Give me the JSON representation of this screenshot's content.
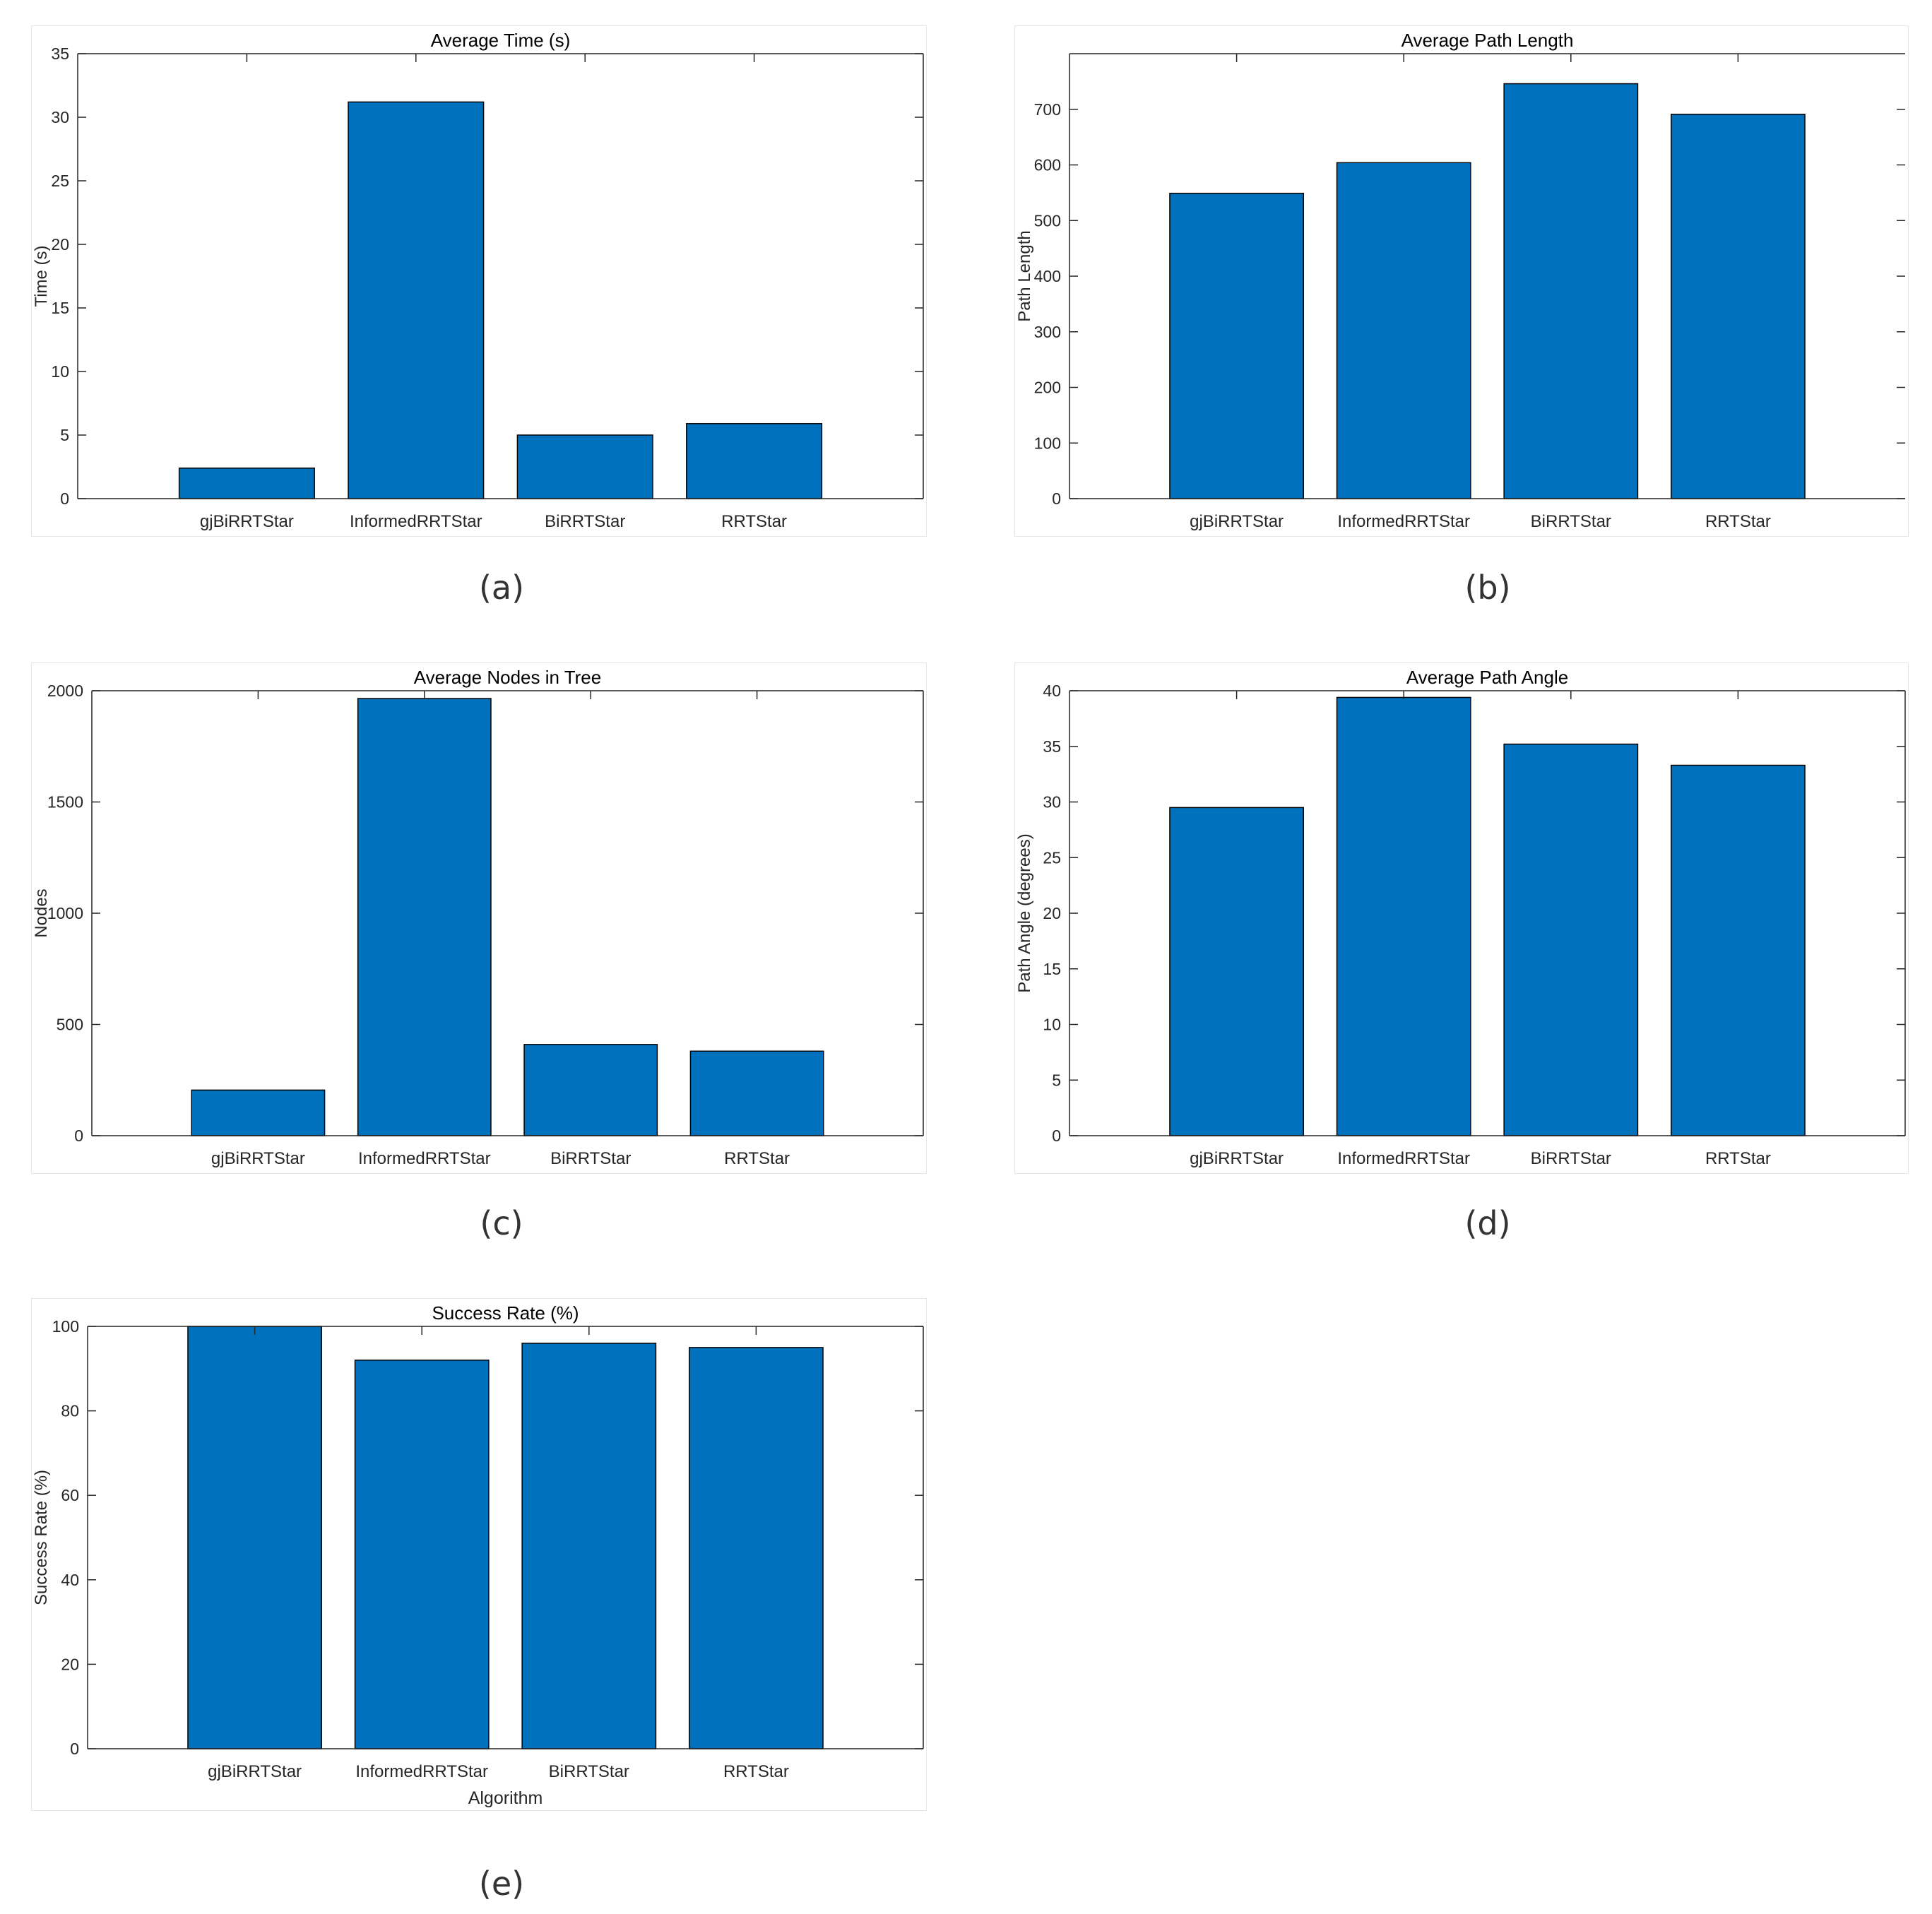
{
  "chart_data": [
    {
      "type": "bar",
      "title": "Average Time (s)",
      "xlabel": "",
      "ylabel": "Time (s)",
      "categories": [
        "gjBiRRTStar",
        "InformedRRTStar",
        "BiRRTStar",
        "RRTStar"
      ],
      "values": [
        2.4,
        31.2,
        5.0,
        5.9
      ],
      "ylim": [
        0,
        35
      ],
      "yticks": [
        "0",
        "5",
        "10",
        "15",
        "20",
        "25",
        "30",
        "35"
      ],
      "bar_color": "#0072BD",
      "caption": "(a)"
    },
    {
      "type": "bar",
      "title": "Average Path Length",
      "xlabel": "",
      "ylabel": "Path Length",
      "categories": [
        "gjBiRRTStar",
        "InformedRRTStar",
        "BiRRTStar",
        "RRTStar"
      ],
      "values": [
        549,
        604,
        746,
        691
      ],
      "ylim": [
        0,
        800
      ],
      "yticks": [
        "0",
        "100",
        "200",
        "300",
        "400",
        "500",
        "600",
        "700"
      ],
      "bar_color": "#0072BD",
      "caption": "(b)"
    },
    {
      "type": "bar",
      "title": "Average Nodes in Tree",
      "xlabel": "",
      "ylabel": "Nodes",
      "categories": [
        "gjBiRRTStar",
        "InformedRRTStar",
        "BiRRTStar",
        "RRTStar"
      ],
      "values": [
        205,
        1965,
        410,
        380
      ],
      "ylim": [
        0,
        2000
      ],
      "yticks": [
        "0",
        "500",
        "1000",
        "1500",
        "2000"
      ],
      "bar_color": "#0072BD",
      "caption": "(c)"
    },
    {
      "type": "bar",
      "title": "Average Path Angle",
      "xlabel": "",
      "ylabel": "Path Angle (degrees)",
      "categories": [
        "gjBiRRTStar",
        "InformedRRTStar",
        "BiRRTStar",
        "RRTStar"
      ],
      "values": [
        29.5,
        39.4,
        35.2,
        33.3
      ],
      "ylim": [
        0,
        40
      ],
      "yticks": [
        "0",
        "5",
        "10",
        "15",
        "20",
        "25",
        "30",
        "35",
        "40"
      ],
      "bar_color": "#0072BD",
      "caption": "(d)"
    },
    {
      "type": "bar",
      "title": "Success Rate (%)",
      "xlabel": "Algorithm",
      "ylabel": "Success Rate (%)",
      "categories": [
        "gjBiRRTStar",
        "InformedRRTStar",
        "BiRRTStar",
        "RRTStar"
      ],
      "values": [
        100,
        92,
        96,
        95
      ],
      "ylim": [
        0,
        100
      ],
      "yticks": [
        "0",
        "20",
        "40",
        "60",
        "80",
        "100"
      ],
      "bar_color": "#0072BD",
      "caption": "(e)"
    }
  ]
}
